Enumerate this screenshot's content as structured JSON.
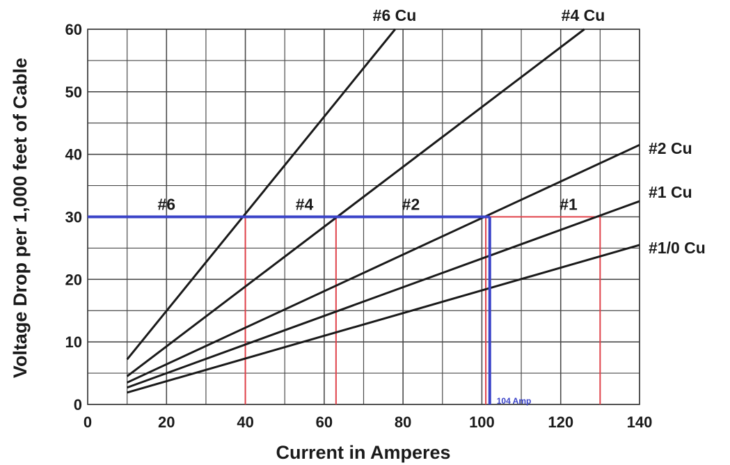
{
  "chart_data": {
    "type": "line",
    "title": "",
    "xlabel": "Current in Amperes",
    "ylabel": "Voltage Drop per 1,000 feet of Cable",
    "xlim": [
      0,
      140
    ],
    "ylim": [
      0,
      60
    ],
    "x_ticks": [
      "0",
      "20",
      "40",
      "60",
      "80",
      "100",
      "120",
      "140"
    ],
    "y_ticks": [
      "0",
      "10",
      "20",
      "30",
      "40",
      "50",
      "60"
    ],
    "grid": true,
    "series": [
      {
        "name": "#6 Cu",
        "points": [
          [
            10,
            7.2
          ],
          [
            78,
            60
          ]
        ]
      },
      {
        "name": "#4 Cu",
        "points": [
          [
            10,
            4.5
          ],
          [
            126,
            60
          ]
        ]
      },
      {
        "name": "#2 Cu",
        "points": [
          [
            10,
            3.5
          ],
          [
            140,
            41.5
          ]
        ]
      },
      {
        "name": "#1 Cu",
        "points": [
          [
            10,
            2.7
          ],
          [
            140,
            32.5
          ]
        ]
      },
      {
        "name": "#1/0 Cu",
        "points": [
          [
            10,
            1.9
          ],
          [
            140,
            25.5
          ]
        ]
      }
    ],
    "region_labels": [
      "#6",
      "#4",
      "#2",
      "#1"
    ],
    "reference_line": {
      "y": 30,
      "color": "#3b44c8"
    },
    "marker_lines": {
      "color": "#e0424a",
      "x_values": [
        40,
        63,
        101,
        130
      ]
    },
    "highlight": {
      "x": 102,
      "label": "104 Amp",
      "color": "#3b44c8"
    },
    "colors": {
      "series": "#1a1a1a",
      "grid": "#4a4a4a"
    }
  }
}
